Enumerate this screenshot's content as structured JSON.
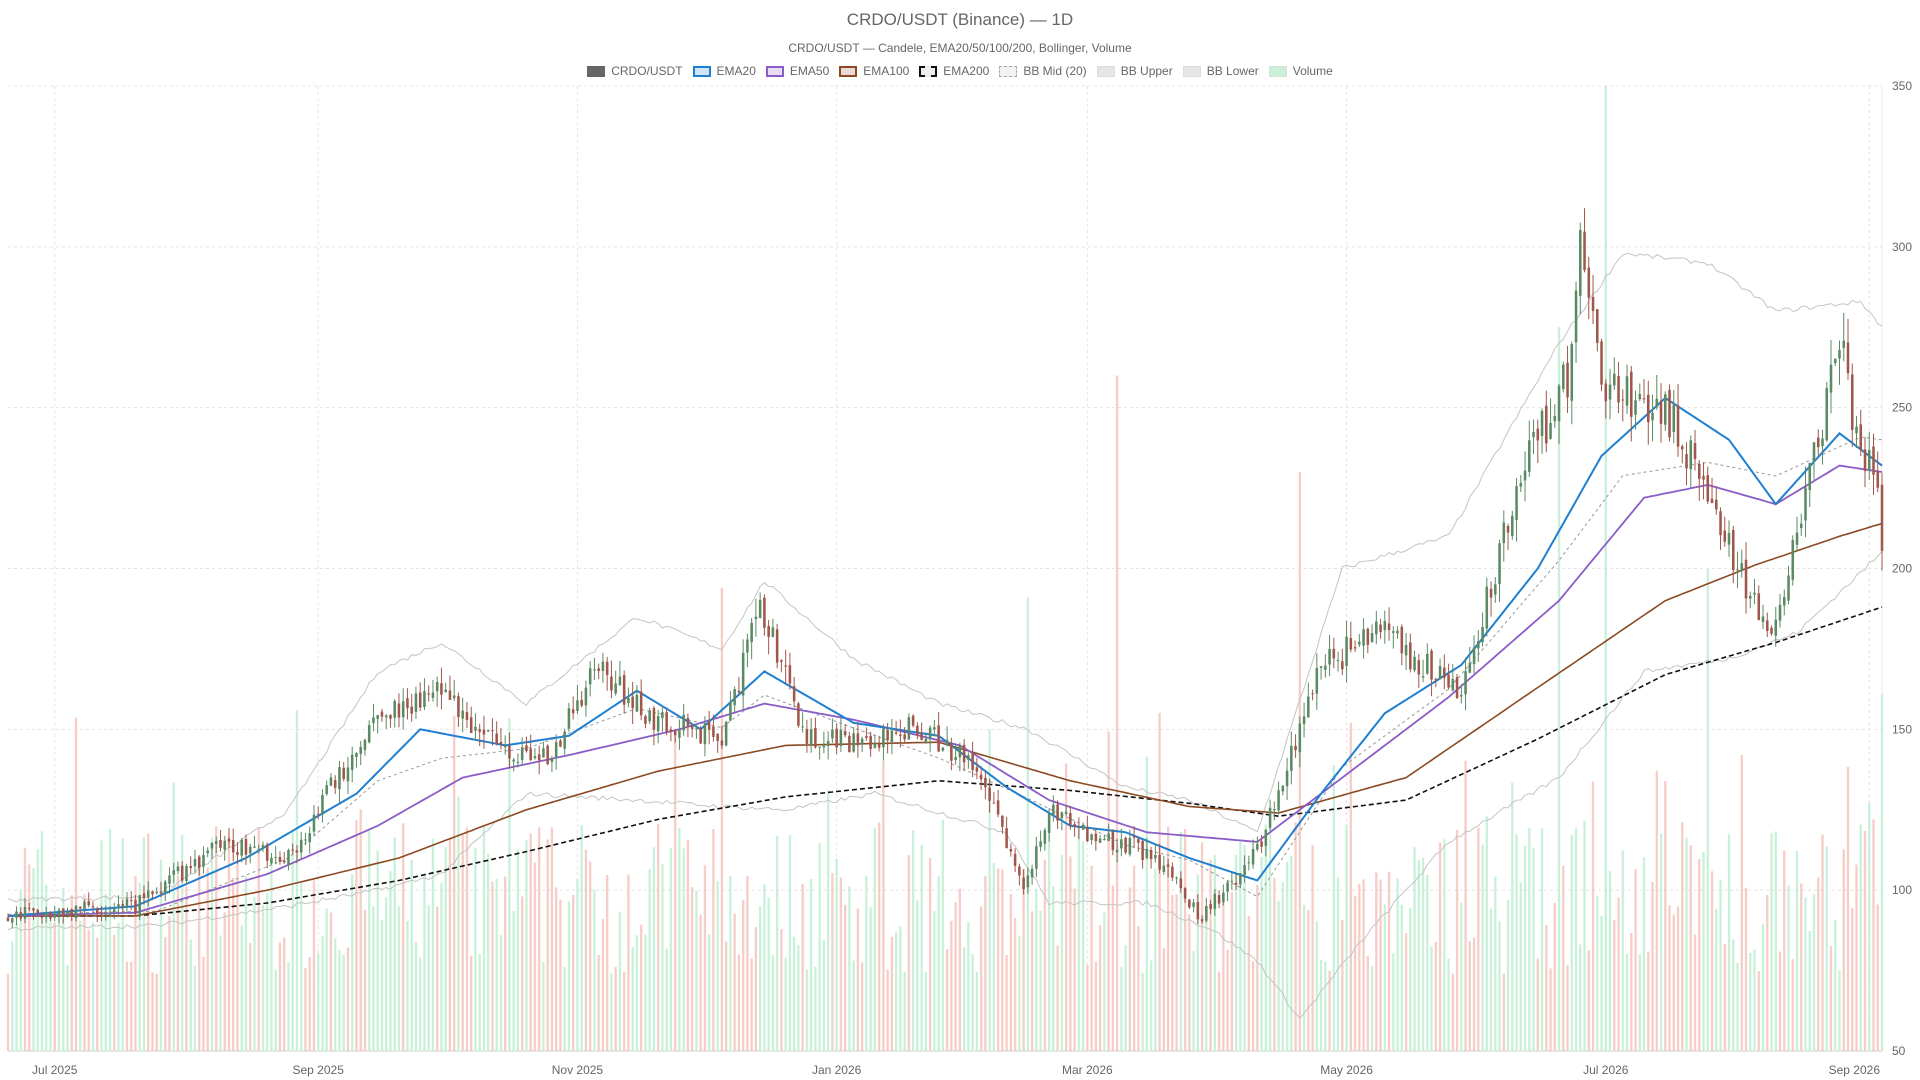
{
  "chart_data": {
    "type": "candlestick",
    "title": "CRDO/USDT (Binance) — 1D",
    "subtitle": "CRDO/USDT — Candele, EMA20/50/100/200, Bollinger, Volume",
    "legend": [
      {
        "name": "CRDO/USDT",
        "color": "#666666",
        "style": "solid-fill"
      },
      {
        "name": "EMA20",
        "color": "#1f7fd0",
        "style": "line"
      },
      {
        "name": "EMA50",
        "color": "#8a5cc8",
        "style": "line"
      },
      {
        "name": "EMA100",
        "color": "#8b4a22",
        "style": "line"
      },
      {
        "name": "EMA200",
        "color": "#111111",
        "style": "dashed"
      },
      {
        "name": "BB Mid (20)",
        "color": "#aaaaaa",
        "style": "dotted"
      },
      {
        "name": "BB Upper",
        "color": "#bbbbbb",
        "style": "fill"
      },
      {
        "name": "BB Lower",
        "color": "#bbbbbb",
        "style": "fill"
      },
      {
        "name": "Volume",
        "color": "#a8e6c4",
        "style": "fill"
      }
    ],
    "colors": {
      "up": "#5a8a63",
      "down": "#a0564a",
      "vol_up": "#bfeed4",
      "vol_down": "#f4c4bd"
    },
    "x_ticks": [
      "Jul 2025",
      "Sep 2025",
      "Nov 2025",
      "Jan 2026",
      "Mar 2026",
      "May 2026",
      "Jul 2026",
      "Sep 2026"
    ],
    "x_tick_dates": [
      "2025-07-01",
      "2025-09-01",
      "2025-11-01",
      "2026-01-01",
      "2026-03-01",
      "2026-05-01",
      "2026-07-01",
      "2026-09-01"
    ],
    "x_range": [
      "2025-06-20",
      "2026-09-04"
    ],
    "y_ticks": [
      50,
      100,
      150,
      200,
      250,
      300,
      350
    ],
    "ylim": [
      50,
      350
    ],
    "y_axis_side": "right",
    "grid": true,
    "legend_position": "top-center",
    "price_keypoints": [
      [
        "2025-06-20",
        92
      ],
      [
        "2025-07-20",
        95
      ],
      [
        "2025-08-10",
        115
      ],
      [
        "2025-08-25",
        110
      ],
      [
        "2025-09-15",
        155
      ],
      [
        "2025-09-30",
        162
      ],
      [
        "2025-10-10",
        148
      ],
      [
        "2025-10-25",
        140
      ],
      [
        "2025-11-05",
        170
      ],
      [
        "2025-11-20",
        152
      ],
      [
        "2025-12-05",
        148
      ],
      [
        "2025-12-14",
        188
      ],
      [
        "2025-12-25",
        148
      ],
      [
        "2026-01-10",
        145
      ],
      [
        "2026-01-20",
        152
      ],
      [
        "2026-02-05",
        135
      ],
      [
        "2026-02-14",
        100
      ],
      [
        "2026-02-20",
        125
      ],
      [
        "2026-03-01",
        118
      ],
      [
        "2026-03-15",
        112
      ],
      [
        "2026-03-28",
        92
      ],
      [
        "2026-04-10",
        112
      ],
      [
        "2026-04-25",
        170
      ],
      [
        "2026-05-10",
        180
      ],
      [
        "2026-05-28",
        160
      ],
      [
        "2026-06-10",
        225
      ],
      [
        "2026-06-22",
        260
      ],
      [
        "2026-06-25",
        300
      ],
      [
        "2026-07-01",
        255
      ],
      [
        "2026-07-15",
        250
      ],
      [
        "2026-07-25",
        225
      ],
      [
        "2026-08-01",
        198
      ],
      [
        "2026-08-10",
        182
      ],
      [
        "2026-08-22",
        250
      ],
      [
        "2026-08-26",
        275
      ],
      [
        "2026-08-28",
        240
      ],
      [
        "2026-09-02",
        228
      ],
      [
        "2026-09-04",
        210
      ]
    ],
    "ema20_keypoints": [
      [
        "2025-06-20",
        92
      ],
      [
        "2025-07-20",
        95
      ],
      [
        "2025-08-15",
        110
      ],
      [
        "2025-09-10",
        130
      ],
      [
        "2025-09-25",
        150
      ],
      [
        "2025-10-15",
        145
      ],
      [
        "2025-10-30",
        148
      ],
      [
        "2025-11-15",
        162
      ],
      [
        "2025-11-30",
        150
      ],
      [
        "2025-12-15",
        168
      ],
      [
        "2026-01-05",
        152
      ],
      [
        "2026-01-25",
        148
      ],
      [
        "2026-02-10",
        132
      ],
      [
        "2026-02-25",
        120
      ],
      [
        "2026-03-10",
        118
      ],
      [
        "2026-03-25",
        110
      ],
      [
        "2026-04-10",
        103
      ],
      [
        "2026-04-25",
        130
      ],
      [
        "2026-05-10",
        155
      ],
      [
        "2026-05-28",
        170
      ],
      [
        "2026-06-15",
        200
      ],
      [
        "2026-06-30",
        235
      ],
      [
        "2026-07-15",
        253
      ],
      [
        "2026-07-30",
        240
      ],
      [
        "2026-08-10",
        220
      ],
      [
        "2026-08-25",
        242
      ],
      [
        "2026-09-04",
        232
      ]
    ],
    "ema50_keypoints": [
      [
        "2025-06-20",
        92
      ],
      [
        "2025-07-20",
        93
      ],
      [
        "2025-08-20",
        105
      ],
      [
        "2025-09-15",
        120
      ],
      [
        "2025-10-05",
        135
      ],
      [
        "2025-10-30",
        142
      ],
      [
        "2025-11-25",
        150
      ],
      [
        "2025-12-15",
        158
      ],
      [
        "2026-01-05",
        153
      ],
      [
        "2026-01-30",
        145
      ],
      [
        "2026-02-20",
        128
      ],
      [
        "2026-03-15",
        118
      ],
      [
        "2026-04-10",
        115
      ],
      [
        "2026-04-30",
        135
      ],
      [
        "2026-05-25",
        160
      ],
      [
        "2026-06-20",
        190
      ],
      [
        "2026-07-10",
        222
      ],
      [
        "2026-07-25",
        226
      ],
      [
        "2026-08-10",
        220
      ],
      [
        "2026-08-25",
        232
      ],
      [
        "2026-09-04",
        230
      ]
    ],
    "ema100_keypoints": [
      [
        "2025-06-20",
        92
      ],
      [
        "2025-07-20",
        92
      ],
      [
        "2025-08-20",
        100
      ],
      [
        "2025-09-20",
        110
      ],
      [
        "2025-10-20",
        125
      ],
      [
        "2025-11-20",
        137
      ],
      [
        "2025-12-20",
        145
      ],
      [
        "2026-01-25",
        146
      ],
      [
        "2026-02-25",
        134
      ],
      [
        "2026-03-25",
        126
      ],
      [
        "2026-04-15",
        124
      ],
      [
        "2026-05-15",
        135
      ],
      [
        "2026-06-15",
        163
      ],
      [
        "2026-07-15",
        190
      ],
      [
        "2026-08-05",
        201
      ],
      [
        "2026-08-25",
        210
      ],
      [
        "2026-09-04",
        214
      ]
    ],
    "ema200_keypoints": [
      [
        "2025-06-20",
        92
      ],
      [
        "2025-07-20",
        92
      ],
      [
        "2025-08-20",
        96
      ],
      [
        "2025-09-20",
        103
      ],
      [
        "2025-10-20",
        112
      ],
      [
        "2025-11-20",
        122
      ],
      [
        "2025-12-20",
        129
      ],
      [
        "2026-01-25",
        134
      ],
      [
        "2026-02-25",
        131
      ],
      [
        "2026-03-25",
        127
      ],
      [
        "2026-04-15",
        123
      ],
      [
        "2026-05-15",
        128
      ],
      [
        "2026-06-15",
        147
      ],
      [
        "2026-07-15",
        167
      ],
      [
        "2026-08-10",
        177
      ],
      [
        "2026-09-04",
        188
      ]
    ],
    "bb_upper_keypoints": [
      [
        "2025-06-20",
        97
      ],
      [
        "2025-07-25",
        98
      ],
      [
        "2025-08-25",
        125
      ],
      [
        "2025-09-15",
        168
      ],
      [
        "2025-09-30",
        177
      ],
      [
        "2025-10-20",
        158
      ],
      [
        "2025-11-15",
        185
      ],
      [
        "2025-12-05",
        175
      ],
      [
        "2025-12-15",
        196
      ],
      [
        "2026-01-05",
        172
      ],
      [
        "2026-01-25",
        158
      ],
      [
        "2026-02-15",
        150
      ],
      [
        "2026-03-10",
        132
      ],
      [
        "2026-03-25",
        128
      ],
      [
        "2026-04-10",
        118
      ],
      [
        "2026-04-30",
        200
      ],
      [
        "2026-05-25",
        210
      ],
      [
        "2026-06-20",
        270
      ],
      [
        "2026-07-05",
        298
      ],
      [
        "2026-07-25",
        295
      ],
      [
        "2026-08-10",
        280
      ],
      [
        "2026-08-30",
        283
      ],
      [
        "2026-09-04",
        275
      ]
    ],
    "bb_lower_keypoints": [
      [
        "2025-06-20",
        88
      ],
      [
        "2025-07-25",
        89
      ],
      [
        "2025-08-25",
        95
      ],
      [
        "2025-09-15",
        100
      ],
      [
        "2025-09-30",
        105
      ],
      [
        "2025-10-20",
        130
      ],
      [
        "2025-11-15",
        128
      ],
      [
        "2025-12-05",
        126
      ],
      [
        "2025-12-20",
        125
      ],
      [
        "2026-01-10",
        130
      ],
      [
        "2026-02-10",
        118
      ],
      [
        "2026-02-20",
        96
      ],
      [
        "2026-03-15",
        96
      ],
      [
        "2026-03-30",
        88
      ],
      [
        "2026-04-10",
        78
      ],
      [
        "2026-04-20",
        60
      ],
      [
        "2026-05-05",
        85
      ],
      [
        "2026-05-25",
        115
      ],
      [
        "2026-06-20",
        135
      ],
      [
        "2026-07-10",
        168
      ],
      [
        "2026-07-30",
        172
      ],
      [
        "2026-08-15",
        180
      ],
      [
        "2026-09-04",
        205
      ]
    ],
    "volume_spikes": [
      [
        "2025-12-05",
        0.48
      ],
      [
        "2026-02-15",
        0.47
      ],
      [
        "2026-03-08",
        0.7
      ],
      [
        "2026-04-20",
        0.6
      ],
      [
        "2026-06-20",
        0.75
      ],
      [
        "2026-07-01",
        1.0
      ],
      [
        "2026-07-25",
        0.5
      ],
      [
        "2026-09-04",
        0.37
      ]
    ]
  }
}
